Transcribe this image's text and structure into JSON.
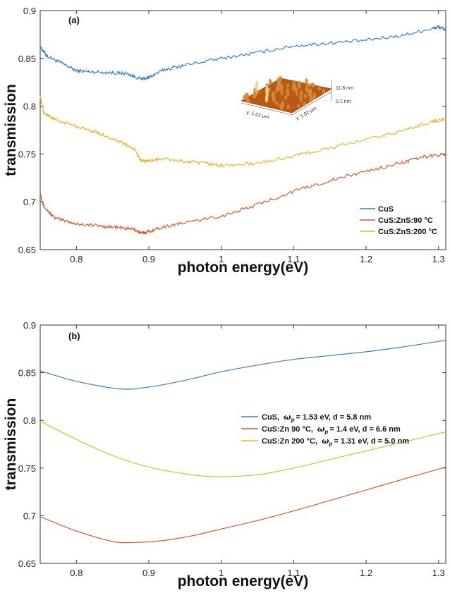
{
  "colors": {
    "CuS": "#3a7fc4",
    "CuS_ZnS_90": "#d5592f",
    "CuS_ZnS_200": "#e8b52a"
  },
  "chart_data": [
    {
      "panel": "(a)",
      "type": "line",
      "xlabel": "photon energy(eV)",
      "ylabel": "transmission",
      "xlim": [
        0.75,
        1.31
      ],
      "ylim": [
        0.65,
        0.9
      ],
      "xticks": [
        "0.8",
        "0.9",
        "1",
        "1.1",
        "1.2",
        "1.3"
      ],
      "yticks": [
        "0.65",
        "0.7",
        "0.75",
        "0.8",
        "0.85",
        "0.9"
      ],
      "legend_placement": "bottom-right",
      "series": [
        {
          "name": "CuS",
          "color_key": "CuS",
          "noisy": true,
          "x": [
            0.75,
            0.76,
            0.78,
            0.8,
            0.82,
            0.85,
            0.87,
            0.89,
            0.9,
            0.92,
            0.95,
            1.0,
            1.05,
            1.1,
            1.15,
            1.2,
            1.25,
            1.29,
            1.3,
            1.31
          ],
          "y": [
            0.862,
            0.852,
            0.845,
            0.837,
            0.836,
            0.835,
            0.834,
            0.828,
            0.83,
            0.838,
            0.843,
            0.85,
            0.856,
            0.863,
            0.866,
            0.869,
            0.874,
            0.881,
            0.883,
            0.88
          ]
        },
        {
          "name": "CuS:ZnS:90 °C",
          "color_key": "CuS_ZnS_90",
          "noisy": true,
          "x": [
            0.75,
            0.755,
            0.77,
            0.8,
            0.83,
            0.86,
            0.88,
            0.89,
            0.9,
            0.92,
            0.95,
            1.0,
            1.05,
            1.1,
            1.15,
            1.2,
            1.25,
            1.28,
            1.31
          ],
          "y": [
            0.709,
            0.695,
            0.683,
            0.677,
            0.675,
            0.673,
            0.671,
            0.667,
            0.669,
            0.674,
            0.678,
            0.685,
            0.697,
            0.711,
            0.722,
            0.732,
            0.741,
            0.747,
            0.75
          ]
        },
        {
          "name": "CuS:ZnS:200 °C",
          "color_key": "CuS_ZnS_200",
          "noisy": true,
          "x": [
            0.75,
            0.755,
            0.77,
            0.8,
            0.83,
            0.86,
            0.88,
            0.89,
            0.9,
            0.92,
            0.95,
            0.98,
            1.0,
            1.05,
            1.1,
            1.15,
            1.2,
            1.25,
            1.29,
            1.31
          ],
          "y": [
            0.81,
            0.793,
            0.786,
            0.779,
            0.772,
            0.763,
            0.755,
            0.742,
            0.743,
            0.745,
            0.742,
            0.74,
            0.738,
            0.74,
            0.748,
            0.756,
            0.765,
            0.774,
            0.784,
            0.786
          ]
        }
      ],
      "inset": {
        "label_height_top": "11.8 nm",
        "label_height_bottom": "0.1 nm",
        "label_y": "y: 1.02 μm",
        "label_x": "x: 1.02 μm"
      }
    },
    {
      "panel": "(b)",
      "type": "line",
      "xlabel": "photon energy(eV)",
      "ylabel": "transmission",
      "xlim": [
        0.75,
        1.31
      ],
      "ylim": [
        0.65,
        0.9
      ],
      "xticks": [
        "0.8",
        "0.9",
        "1",
        "1.1",
        "1.2",
        "1.3"
      ],
      "yticks": [
        "0.65",
        "0.7",
        "0.75",
        "0.8",
        "0.85",
        "0.9"
      ],
      "legend_placement": "middle-right",
      "series": [
        {
          "name": "CuS, ωp= 1.53 eV, d = 5.8 nm",
          "color_key": "CuS",
          "label_parts": {
            "material": "CuS,",
            "omega": "ω",
            "sub": "p",
            "rest": "= 1.53 eV, d = 5.8 nm"
          },
          "x": [
            0.75,
            0.8,
            0.86,
            0.9,
            0.95,
            1.0,
            1.05,
            1.1,
            1.15,
            1.2,
            1.25,
            1.31
          ],
          "y": [
            0.852,
            0.841,
            0.833,
            0.835,
            0.842,
            0.851,
            0.858,
            0.864,
            0.868,
            0.872,
            0.877,
            0.884
          ]
        },
        {
          "name": "CuS:Zn 90 °C, ωp = 1.4 eV, d = 6.6 nm",
          "color_key": "CuS_ZnS_90",
          "label_parts": {
            "material": "CuS:Zn   90 °C,",
            "omega": "ω",
            "sub": "p",
            "rest": "= 1.4 eV, d = 6.6 nm"
          },
          "x": [
            0.75,
            0.8,
            0.85,
            0.88,
            0.92,
            0.96,
            1.0,
            1.05,
            1.1,
            1.15,
            1.2,
            1.25,
            1.31
          ],
          "y": [
            0.699,
            0.684,
            0.673,
            0.672,
            0.674,
            0.679,
            0.686,
            0.695,
            0.705,
            0.716,
            0.727,
            0.738,
            0.751
          ]
        },
        {
          "name": "CuS:Zn 200 °C, ωp = 1.31 eV, d = 5.0 nm",
          "color_key": "CuS_ZnS_200",
          "label_parts": {
            "material": "CuS:Zn   200 °C,",
            "omega": "ω",
            "sub": "p",
            "rest": "= 1.31 eV, d = 5.0 nm"
          },
          "x": [
            0.75,
            0.8,
            0.85,
            0.9,
            0.95,
            0.99,
            1.05,
            1.1,
            1.15,
            1.2,
            1.25,
            1.31
          ],
          "y": [
            0.799,
            0.78,
            0.763,
            0.751,
            0.744,
            0.741,
            0.743,
            0.75,
            0.759,
            0.768,
            0.777,
            0.788
          ]
        }
      ]
    }
  ]
}
